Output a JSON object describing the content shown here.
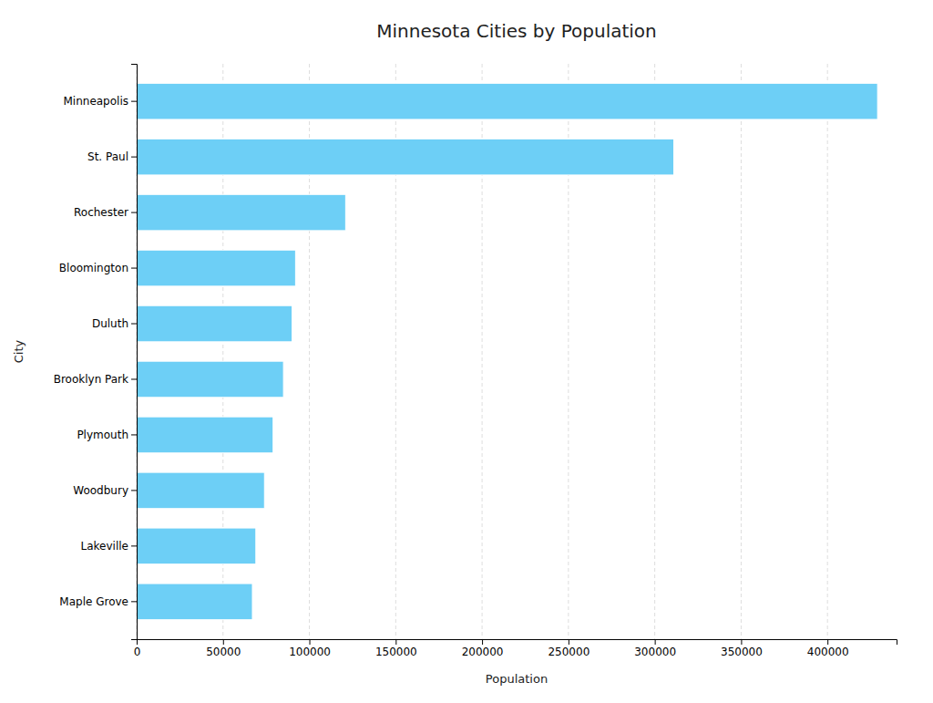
{
  "chart_data": {
    "type": "bar",
    "orientation": "horizontal",
    "title": "Minnesota Cities by Population",
    "xlabel": "Population",
    "ylabel": "City",
    "categories": [
      "Maple Grove",
      "Lakeville",
      "Woodbury",
      "Plymouth",
      "Brooklyn Park",
      "Duluth",
      "Bloomington",
      "Rochester",
      "St. Paul",
      "Minneapolis"
    ],
    "values": [
      67000,
      69000,
      74000,
      79000,
      85000,
      90000,
      92000,
      121000,
      311000,
      429000
    ],
    "color": "#6DCFF6",
    "xlim": [
      0,
      440000
    ],
    "xticks": [
      0,
      50000,
      100000,
      150000,
      200000,
      250000,
      300000,
      350000,
      400000
    ],
    "grid": true
  }
}
